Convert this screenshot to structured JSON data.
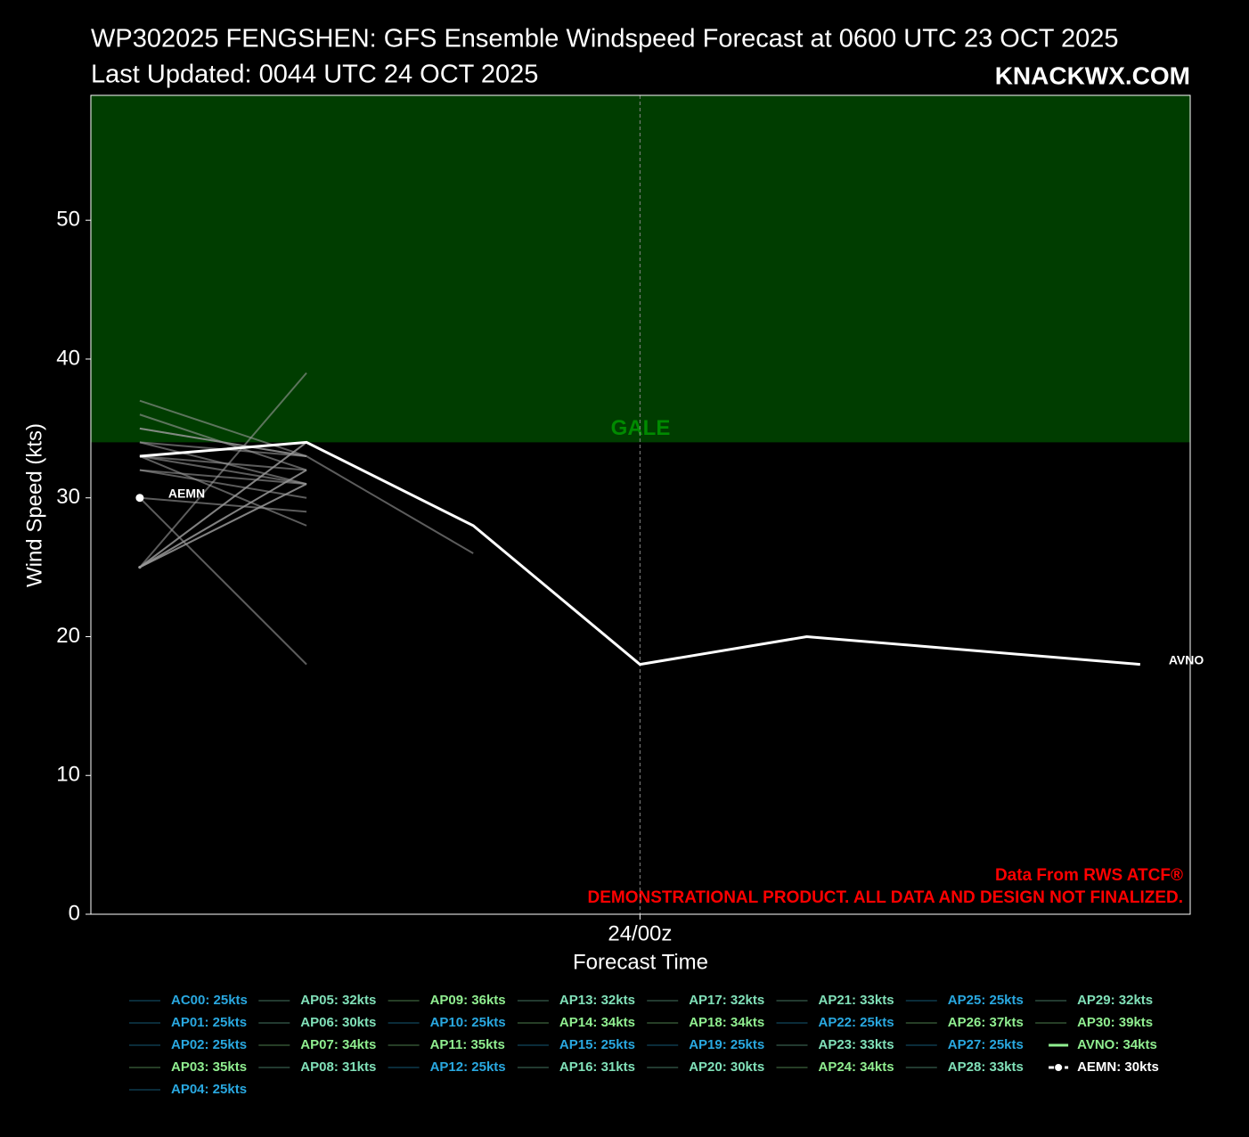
{
  "chart_data": {
    "type": "line",
    "title": "WP302025 FENGSHEN: GFS Ensemble Windspeed Forecast at 0600 UTC 23 OCT 2025",
    "subtitle": "Last Updated: 0044 UTC 24 OCT 2025",
    "brand": "KNACKWX.COM",
    "x_label": "Forecast Time",
    "y_label": "Wind Speed (kts)",
    "annotations": [
      "Data From RWS ATCF®",
      "DEMONSTRATIONAL PRODUCT. ALL DATA AND DESIGN NOT FINALIZED."
    ],
    "x": [
      0,
      6,
      12,
      18,
      24,
      36
    ],
    "xlim": [
      -1.76,
      37.8
    ],
    "xticks": [
      {
        "value": 18,
        "label": "24/00z"
      }
    ],
    "ylim": [
      0,
      59
    ],
    "yticks": [
      0,
      10,
      20,
      30,
      40,
      50
    ],
    "thresholds": [
      {
        "label": "GALE",
        "value": 34,
        "color": "#003d00",
        "text_color": "#008a00"
      }
    ],
    "member_line_color": "#9a9a9a",
    "series": [
      {
        "name": "AC00: 25kts",
        "color": "#29a8e0",
        "values": [
          25,
          null,
          null,
          null,
          null,
          null
        ]
      },
      {
        "name": "AP01: 25kts",
        "color": "#29a8e0",
        "values": [
          25,
          null,
          null,
          null,
          null,
          null
        ]
      },
      {
        "name": "AP02: 25kts",
        "color": "#29a8e0",
        "values": [
          25,
          null,
          null,
          null,
          null,
          null
        ]
      },
      {
        "name": "AP03: 35kts",
        "color": "#90ee90",
        "values": [
          35,
          33,
          null,
          null,
          null,
          null
        ]
      },
      {
        "name": "AP04: 25kts",
        "color": "#29a8e0",
        "values": [
          25,
          null,
          null,
          null,
          null,
          null
        ]
      },
      {
        "name": "AP05: 32kts",
        "color": "#80e0b8",
        "values": [
          25,
          32,
          null,
          null,
          null,
          null
        ]
      },
      {
        "name": "AP06: 30kts",
        "color": "#80e0b8",
        "values": [
          30,
          29,
          null,
          null,
          null,
          null
        ]
      },
      {
        "name": "AP07: 34kts",
        "color": "#90ee90",
        "values": [
          34,
          31,
          null,
          null,
          null,
          null
        ]
      },
      {
        "name": "AP08: 31kts",
        "color": "#80e0b8",
        "values": [
          25,
          31,
          null,
          null,
          null,
          null
        ]
      },
      {
        "name": "AP09: 36kts",
        "color": "#90ee90",
        "values": [
          36,
          32,
          null,
          null,
          null,
          null
        ]
      },
      {
        "name": "AP10: 25kts",
        "color": "#29a8e0",
        "values": [
          25,
          null,
          null,
          null,
          null,
          null
        ]
      },
      {
        "name": "AP11: 35kts",
        "color": "#90ee90",
        "values": [
          35,
          33,
          null,
          null,
          null,
          null
        ]
      },
      {
        "name": "AP12: 25kts",
        "color": "#29a8e0",
        "values": [
          25,
          null,
          null,
          null,
          null,
          null
        ]
      },
      {
        "name": "AP13: 32kts",
        "color": "#80e0b8",
        "values": [
          25,
          32,
          null,
          null,
          null,
          null
        ]
      },
      {
        "name": "AP14: 34kts",
        "color": "#90ee90",
        "values": [
          25,
          34,
          null,
          null,
          null,
          null
        ]
      },
      {
        "name": "AP15: 25kts",
        "color": "#29a8e0",
        "values": [
          25,
          null,
          null,
          null,
          null,
          null
        ]
      },
      {
        "name": "AP16: 31kts",
        "color": "#80e0b8",
        "values": [
          25,
          31,
          null,
          null,
          null,
          null
        ]
      },
      {
        "name": "AP17: 32kts",
        "color": "#80e0b8",
        "values": [
          32,
          31,
          null,
          null,
          null,
          null
        ]
      },
      {
        "name": "AP18: 34kts",
        "color": "#90ee90",
        "values": [
          34,
          33,
          26,
          null,
          null,
          null
        ]
      },
      {
        "name": "AP19: 25kts",
        "color": "#29a8e0",
        "values": [
          25,
          null,
          null,
          null,
          null,
          null
        ]
      },
      {
        "name": "AP20: 30kts",
        "color": "#80e0b8",
        "values": [
          30,
          18,
          null,
          null,
          null,
          null
        ]
      },
      {
        "name": "AP21: 33kts",
        "color": "#80e0b8",
        "values": [
          33,
          28,
          null,
          null,
          null,
          null
        ]
      },
      {
        "name": "AP22: 25kts",
        "color": "#29a8e0",
        "values": [
          25,
          null,
          null,
          null,
          null,
          null
        ]
      },
      {
        "name": "AP23: 33kts",
        "color": "#80e0b8",
        "values": [
          33,
          31,
          null,
          null,
          null,
          null
        ]
      },
      {
        "name": "AP24: 34kts",
        "color": "#90ee90",
        "values": [
          25,
          34,
          null,
          null,
          null,
          null
        ]
      },
      {
        "name": "AP25: 25kts",
        "color": "#29a8e0",
        "values": [
          25,
          null,
          null,
          null,
          null,
          null
        ]
      },
      {
        "name": "AP26: 37kts",
        "color": "#90ee90",
        "values": [
          37,
          33,
          null,
          null,
          null,
          null
        ]
      },
      {
        "name": "AP27: 25kts",
        "color": "#29a8e0",
        "values": [
          25,
          null,
          null,
          null,
          null,
          null
        ]
      },
      {
        "name": "AP28: 33kts",
        "color": "#80e0b8",
        "values": [
          33,
          32,
          null,
          null,
          null,
          null
        ]
      },
      {
        "name": "AP29: 32kts",
        "color": "#80e0b8",
        "values": [
          32,
          30,
          null,
          null,
          null,
          null
        ]
      },
      {
        "name": "AP30: 39kts",
        "color": "#90ee90",
        "values": [
          25,
          39,
          null,
          null,
          null,
          null
        ]
      },
      {
        "name": "AVNO: 34kts",
        "end_label": "AVNO",
        "color": "#ffffff",
        "legend_color": "#90ee90",
        "values": [
          33,
          34,
          28,
          18,
          20,
          18
        ]
      },
      {
        "name": "AEMN: 30kts",
        "end_label": "AEMN",
        "color": "#ffffff",
        "legend_color": "#ffffff",
        "marker": "o",
        "values": [
          30,
          null,
          null,
          null,
          null,
          null
        ]
      }
    ]
  }
}
